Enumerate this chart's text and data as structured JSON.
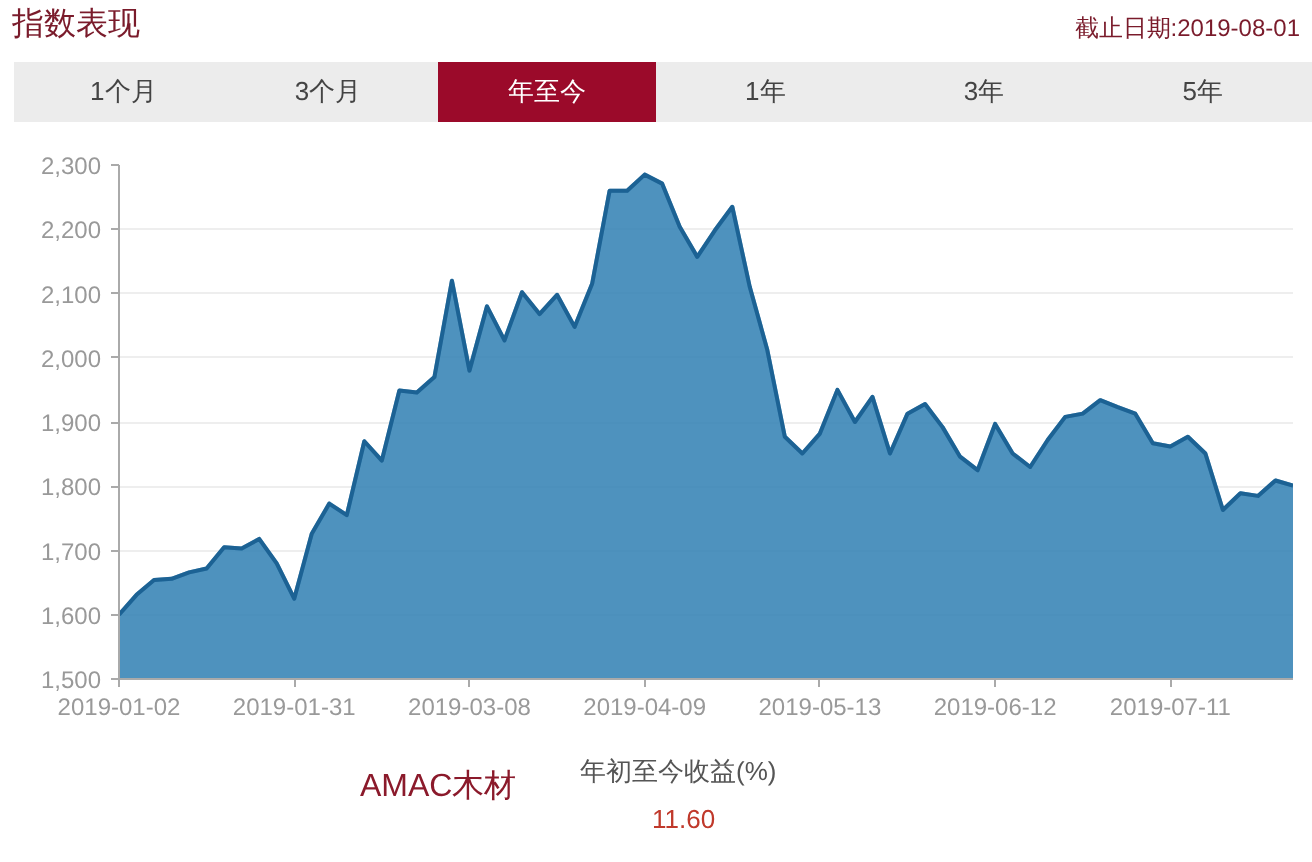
{
  "chart_data": {
    "type": "area",
    "title": "指数表现",
    "annotations": [
      "截止日期:2019-08-01",
      "1个月",
      "3个月",
      "年至今",
      "1年",
      "3年",
      "5年",
      "AMAC木材",
      "年初至今收益(%)",
      "11.60"
    ],
    "categories": [
      "2019-01-02",
      null,
      null,
      null,
      null,
      null,
      null,
      null,
      null,
      null,
      "2019-01-31",
      null,
      null,
      null,
      null,
      null,
      null,
      null,
      null,
      null,
      "2019-03-08",
      null,
      null,
      null,
      null,
      null,
      null,
      null,
      null,
      null,
      "2019-04-09",
      null,
      null,
      null,
      null,
      null,
      null,
      null,
      null,
      null,
      "2019-05-13",
      null,
      null,
      null,
      null,
      null,
      null,
      null,
      null,
      null,
      "2019-06-12",
      null,
      null,
      null,
      null,
      null,
      null,
      null,
      null,
      null,
      "2019-07-11",
      null,
      null,
      null,
      null,
      null,
      null,
      null
    ],
    "series": [
      {
        "color": "#2f7fb3",
        "values": [
          1600,
          1631,
          1654,
          1656,
          1666,
          1672,
          1705,
          1703,
          1718,
          1680,
          1625,
          1726,
          1773,
          1755,
          1870,
          1840,
          1949,
          1946,
          1970,
          2120,
          1980,
          2080,
          2027,
          2102,
          2068,
          2098,
          2048,
          2115,
          2260,
          2260,
          2285,
          2271,
          2204,
          2157,
          2198,
          2235,
          2110,
          2012,
          1877,
          1851,
          1882,
          1950,
          1900,
          1939,
          1851,
          1913,
          1928,
          1892,
          1846,
          1825,
          1897,
          1851,
          1830,
          1872,
          1908,
          1913,
          1934,
          1923,
          1913,
          1867,
          1862,
          1877,
          1851,
          1763,
          1789,
          1785,
          1809,
          1801
        ]
      }
    ],
    "ylim": [
      1500,
      2300
    ],
    "yticks": [
      {
        "value": 1500,
        "label": "1,500"
      },
      {
        "value": 1600,
        "label": "1,600"
      },
      {
        "value": 1700,
        "label": "1,700"
      },
      {
        "value": 1800,
        "label": "1,800"
      },
      {
        "value": 1900,
        "label": "1,900"
      },
      {
        "value": 2000,
        "label": "2,000"
      },
      {
        "value": 2100,
        "label": "2,100"
      },
      {
        "value": 2200,
        "label": "2,200"
      },
      {
        "value": 2300,
        "label": "2,300"
      }
    ],
    "grid": "y"
  }
}
